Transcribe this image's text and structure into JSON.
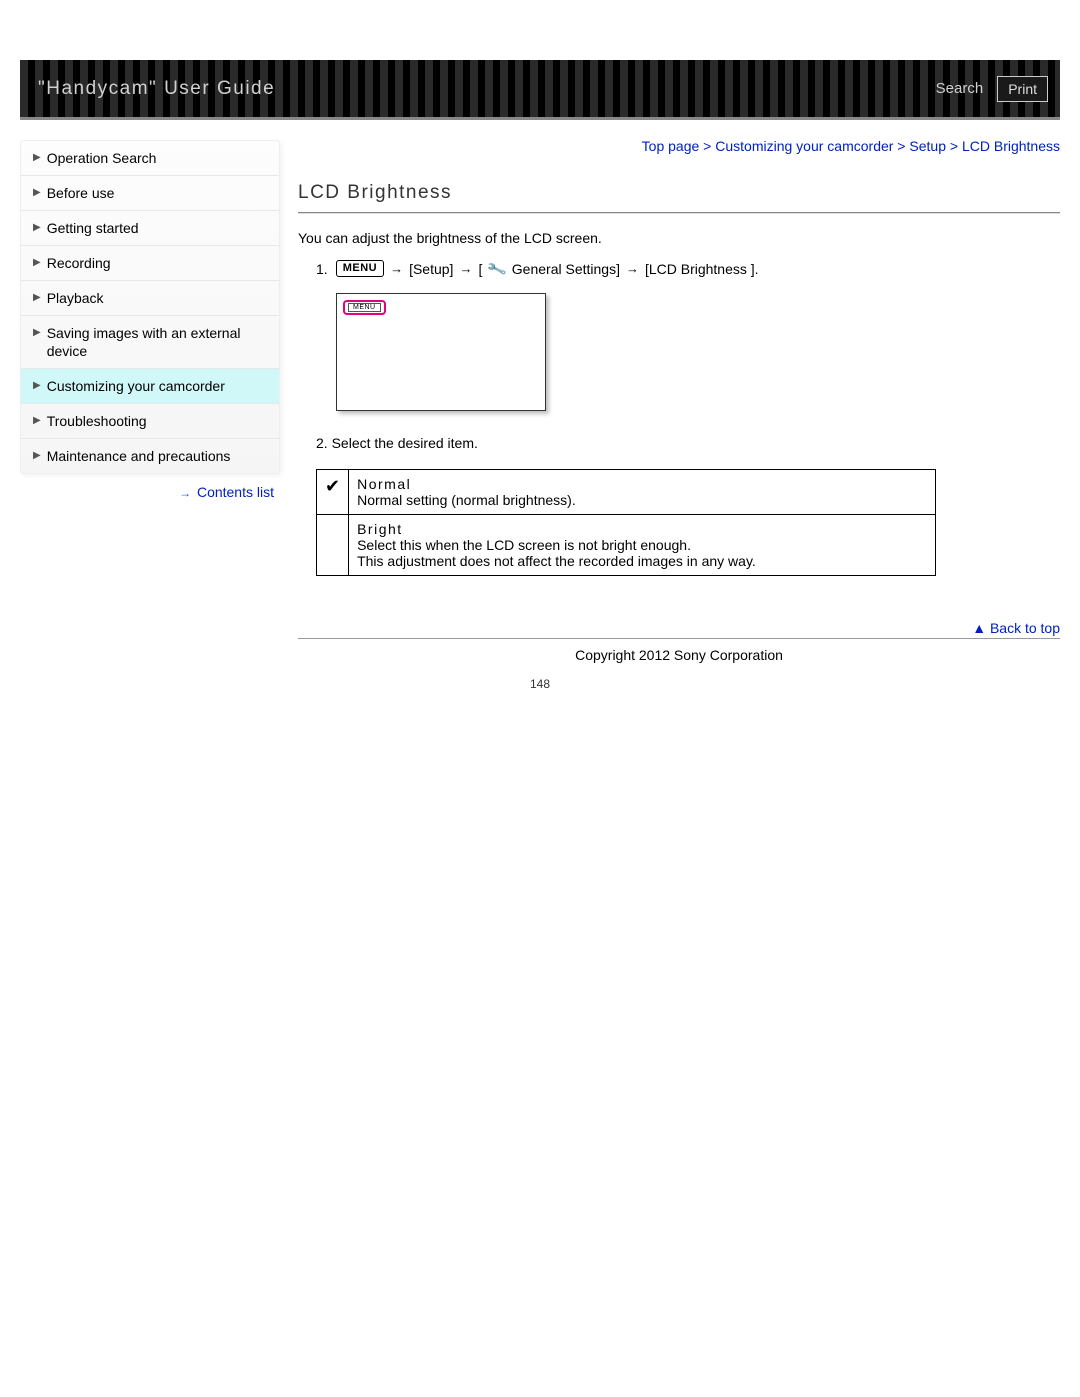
{
  "header": {
    "title": "\"Handycam\" User Guide",
    "search": "Search",
    "print": "Print"
  },
  "sidebar": {
    "items": [
      {
        "label": "Operation Search",
        "active": false
      },
      {
        "label": "Before use",
        "active": false
      },
      {
        "label": "Getting started",
        "active": false
      },
      {
        "label": "Recording",
        "active": false
      },
      {
        "label": "Playback",
        "active": false
      },
      {
        "label": "Saving images with an external device",
        "active": false
      },
      {
        "label": "Customizing your camcorder",
        "active": true
      },
      {
        "label": "Troubleshooting",
        "active": false
      },
      {
        "label": "Maintenance and precautions",
        "active": false
      }
    ],
    "contents_link": "Contents list"
  },
  "breadcrumb": {
    "parts": [
      "Top page",
      "Customizing your camcorder",
      "Setup",
      "LCD Brightness"
    ],
    "sep": ">"
  },
  "main": {
    "title": "LCD Brightness",
    "intro": "You can adjust the brightness of the LCD screen.",
    "step1_num": "1.",
    "menu_label": "MENU",
    "flow": {
      "setup": "[Setup]",
      "general_open": "[",
      "general": "General Settings]",
      "final": "[LCD Brightness ]."
    },
    "step2_num": "2.",
    "step2_text": "Select the desired item.",
    "screen_menu_text": "MENU",
    "options": [
      {
        "checked": true,
        "name": "Normal",
        "desc": "Normal setting (normal brightness)."
      },
      {
        "checked": false,
        "name": "Bright",
        "desc": "Select this when the LCD screen is not bright enough.\nThis adjustment does not affect the recorded images in any way."
      }
    ],
    "back_to_top": "Back to top"
  },
  "footer": {
    "copyright": "Copyright 2012 Sony Corporation",
    "page_num": "148"
  }
}
